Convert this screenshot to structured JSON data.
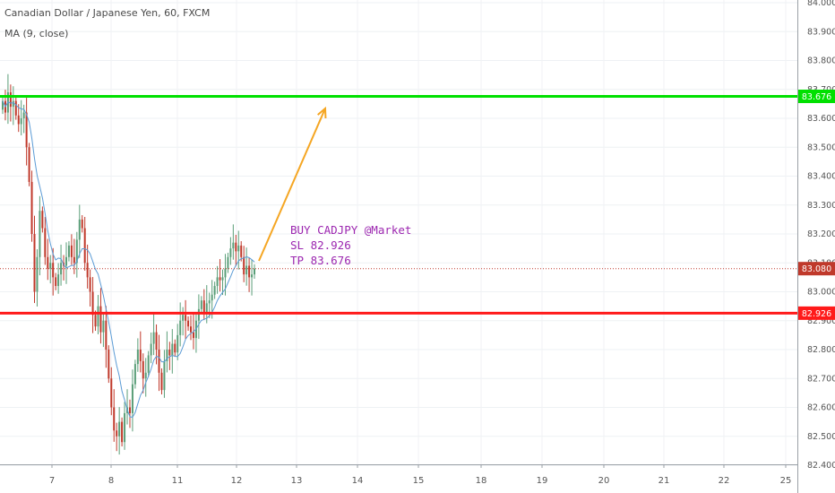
{
  "header": {
    "symbol_title": "Canadian Dollar / Japanese Yen, 60, FXCM",
    "indicator_label": "MA (9, close)"
  },
  "annotation": {
    "line1": "BUY CADJPY @Market",
    "line2": "SL 82.926",
    "line3": "TP 83.676"
  },
  "colors": {
    "up_candle": "#5a9e78",
    "down_candle": "#c0392b",
    "tp_line": "#00e000",
    "sl_line": "#ff1a1a",
    "current_price": "#c0392b",
    "ma_line": "#5b9bd5",
    "arrow": "#f5a623",
    "annotation_text": "#9c27b0"
  },
  "chart_data": {
    "type": "candlestick",
    "ylim": [
      82.4,
      84.0
    ],
    "y_ticks": [
      "84.000",
      "83.900",
      "83.800",
      "83.700",
      "83.600",
      "83.500",
      "83.400",
      "83.300",
      "83.200",
      "83.100",
      "83.000",
      "82.900",
      "82.800",
      "82.700",
      "82.600",
      "82.500",
      "82.400"
    ],
    "x_ticks": [
      "7",
      "8",
      "11",
      "12",
      "13",
      "14",
      "15",
      "18",
      "19",
      "20",
      "21",
      "22",
      "25"
    ],
    "candle_count": 96,
    "price_levels": [
      {
        "label": "83.676",
        "value": 83.676,
        "kind": "take-profit"
      },
      {
        "label": "82.926",
        "value": 82.926,
        "kind": "stop-loss"
      },
      {
        "label": "83.080",
        "value": 83.08,
        "kind": "current-price"
      }
    ],
    "closes": [
      83.66,
      83.62,
      83.69,
      83.64,
      83.66,
      83.61,
      83.58,
      83.6,
      83.62,
      83.5,
      83.38,
      83.2,
      83.0,
      83.12,
      83.28,
      83.22,
      83.12,
      83.08,
      83.1,
      83.05,
      83.02,
      83.06,
      83.1,
      83.09,
      83.12,
      83.16,
      83.12,
      83.1,
      83.18,
      83.25,
      83.22,
      83.1,
      83.05,
      83.0,
      82.92,
      82.88,
      82.95,
      82.86,
      82.9,
      82.8,
      82.7,
      82.6,
      82.52,
      82.5,
      82.55,
      82.48,
      82.58,
      82.6,
      82.58,
      82.68,
      82.75,
      82.8,
      82.76,
      82.7,
      82.72,
      82.78,
      82.82,
      82.86,
      82.8,
      82.72,
      82.66,
      82.76,
      82.8,
      82.78,
      82.82,
      82.79,
      82.85,
      82.9,
      82.92,
      82.9,
      82.88,
      82.86,
      82.84,
      82.9,
      82.94,
      82.97,
      82.93,
      82.96,
      82.97,
      82.99,
      83.02,
      83.05,
      83.04,
      83.05,
      83.08,
      83.12,
      83.15,
      83.17,
      83.14,
      83.16,
      83.12,
      83.06,
      83.09,
      83.05,
      83.06,
      83.08
    ]
  }
}
